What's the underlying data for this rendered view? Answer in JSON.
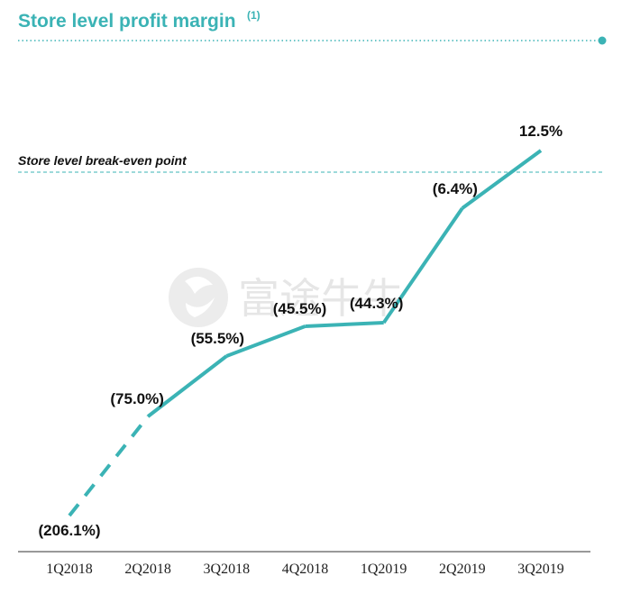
{
  "chart_data": {
    "type": "line",
    "title": "Store level profit margin",
    "title_note": "(1)",
    "categories": [
      "1Q2018",
      "2Q2018",
      "3Q2018",
      "4Q2018",
      "1Q2019",
      "2Q2019",
      "3Q2019"
    ],
    "values": [
      -206.1,
      -75.0,
      -55.5,
      -45.5,
      -44.3,
      -6.4,
      12.5
    ],
    "data_labels": [
      "(206.1%)",
      "(75.0%)",
      "(55.5%)",
      "(45.5%)",
      "(44.3%)",
      "(6.4%)",
      "12.5%"
    ],
    "dashed_segments": [
      0
    ],
    "y_unit": "%",
    "reference_line": {
      "value": 0,
      "label": "Store level break-even point",
      "style": "dashed"
    },
    "line_color": "#3bb3b5",
    "grid": false,
    "legend": "none",
    "xlabel": "",
    "ylabel": ""
  },
  "watermark": {
    "text": "富途牛牛",
    "icon": "futu-logo-icon"
  }
}
